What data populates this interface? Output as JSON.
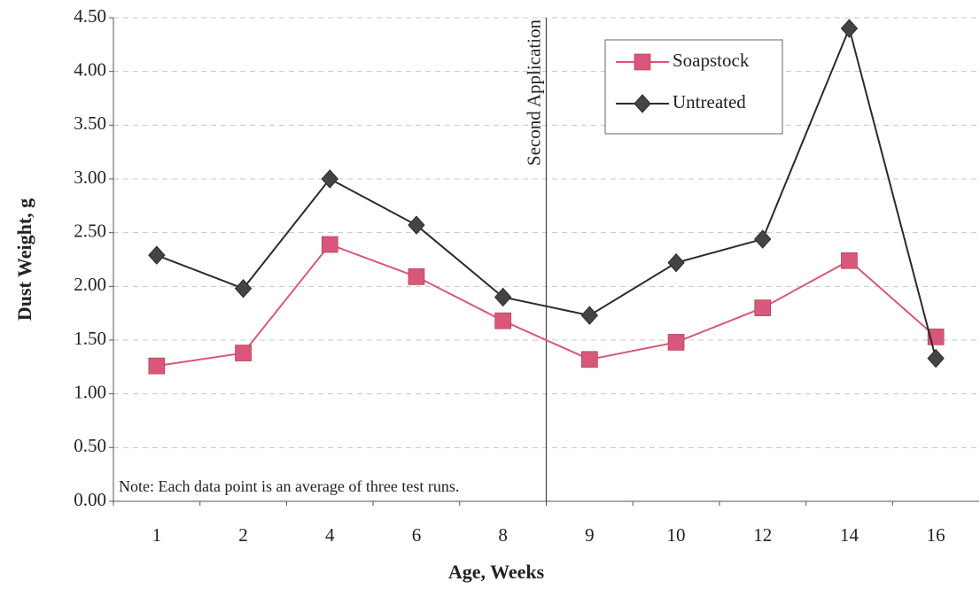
{
  "chart_data": {
    "type": "line",
    "x_label": "Age, Weeks",
    "y_label": "Dust Weight, g",
    "categories": [
      "1",
      "2",
      "4",
      "6",
      "8",
      "9",
      "10",
      "12",
      "14",
      "16"
    ],
    "series": [
      {
        "name": "Soapstock",
        "color": "#d9577c",
        "marker": "square",
        "values": [
          1.26,
          1.38,
          2.39,
          2.09,
          1.68,
          1.32,
          1.48,
          1.8,
          2.24,
          1.53
        ]
      },
      {
        "name": "Untreated",
        "color": "#2b2b2b",
        "marker": "diamond",
        "values": [
          2.29,
          1.98,
          3.0,
          2.57,
          1.9,
          1.73,
          2.22,
          2.44,
          4.4,
          1.33
        ]
      }
    ],
    "ylim": [
      0,
      4.5
    ],
    "yticks": [
      {
        "value": 0,
        "label": "0.00"
      },
      {
        "value": 0.5,
        "label": "0.50"
      },
      {
        "value": 1,
        "label": "1.00"
      },
      {
        "value": 1.5,
        "label": "1.50"
      },
      {
        "value": 2,
        "label": "2.00"
      },
      {
        "value": 2.5,
        "label": "2.50"
      },
      {
        "value": 3,
        "label": "3.00"
      },
      {
        "value": 3.5,
        "label": "3.50"
      },
      {
        "value": 4,
        "label": "4.00"
      },
      {
        "value": 4.5,
        "label": "4.50"
      }
    ],
    "grid": true,
    "legend": "upper right",
    "vline": {
      "label": "Second Application",
      "after": "8"
    },
    "note": "Note: Each data point is an average of three test runs."
  }
}
